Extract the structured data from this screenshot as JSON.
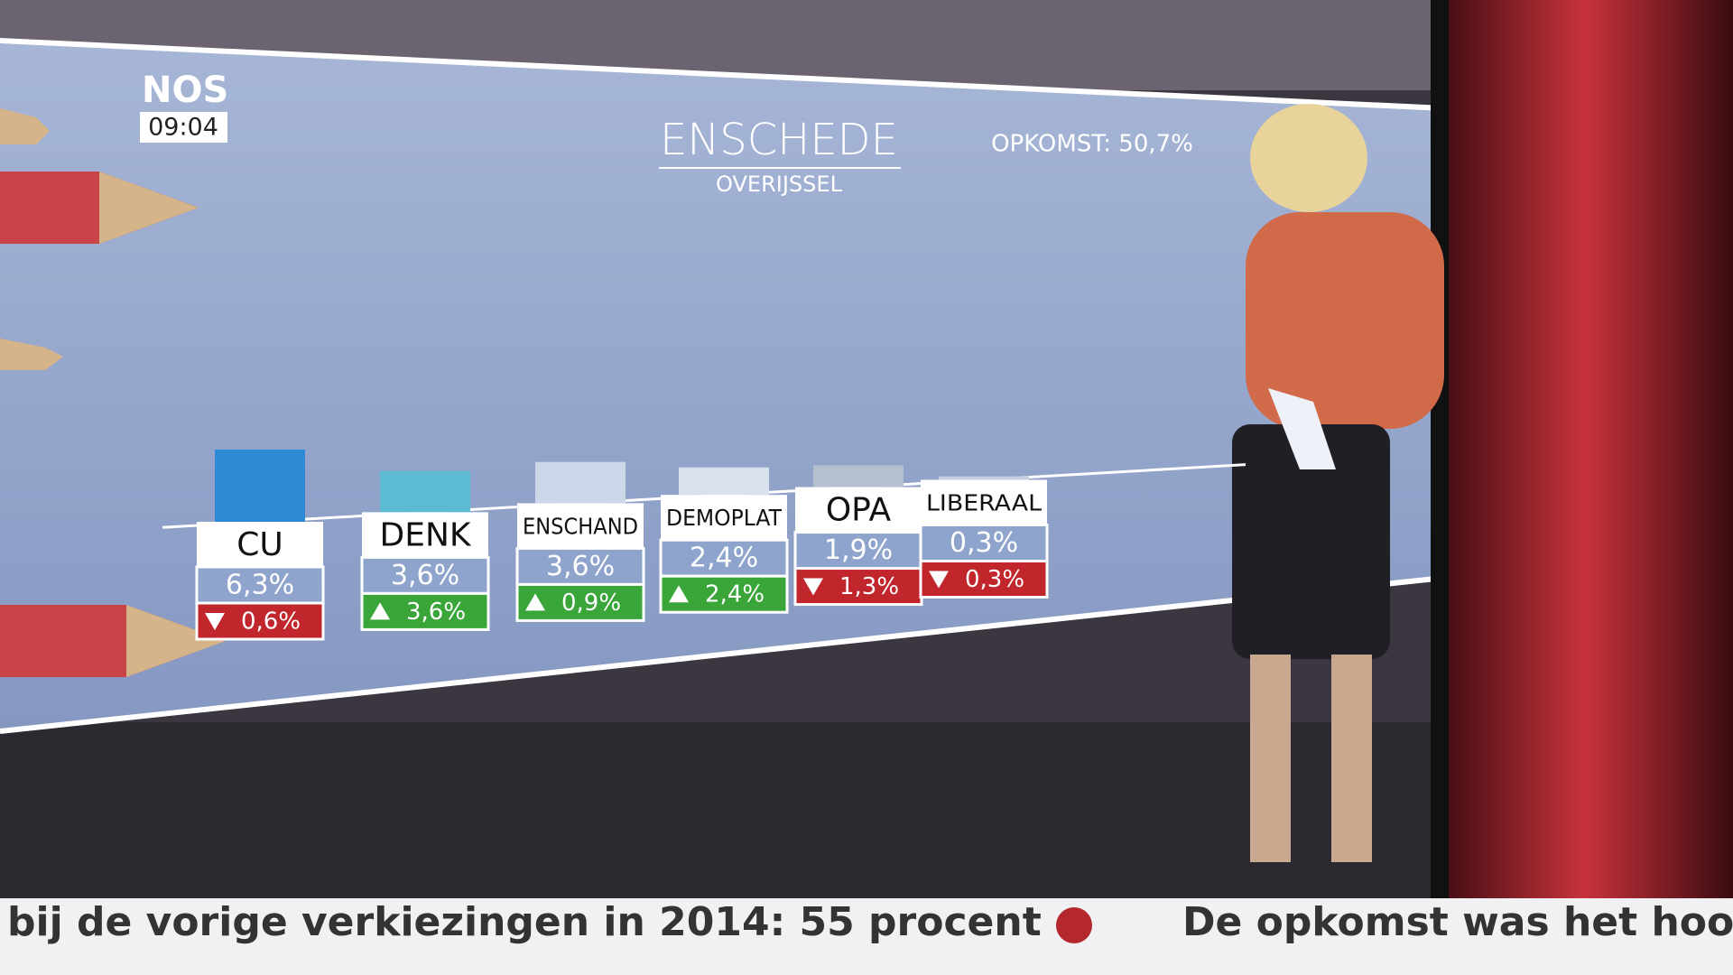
{
  "header": {
    "logo": "NOS",
    "time": "09:04"
  },
  "chart_data": {
    "type": "bar",
    "title": "ENSCHEDE",
    "subtitle": "OVERIJSSEL",
    "annotation": "OPKOMST: 50,7%",
    "categories": [
      "CU",
      "DENK",
      "ENSCHAND",
      "DEMOPLAT",
      "OPA",
      "LIBERAAL"
    ],
    "values": [
      6.3,
      3.6,
      3.6,
      2.4,
      1.9,
      0.3
    ],
    "value_labels": [
      "6,3%",
      "3,6%",
      "3,6%",
      "2,4%",
      "1,9%",
      "0,3%"
    ],
    "colors": [
      "#2f8ad6",
      "#5cbad2",
      "#cdd7ea",
      "#d9e0ee",
      "#b5bfd0",
      "#c5cee0"
    ],
    "changes": [
      -0.6,
      3.6,
      0.9,
      2.4,
      -1.3,
      -0.3
    ],
    "change_labels": [
      "0,6%",
      "3,6%",
      "0,9%",
      "2,4%",
      "1,3%",
      "0,3%"
    ]
  },
  "ticker": {
    "items": [
      "bij de vorige verkiezingen in 2014: 55 procent",
      "De opkomst was het hoog"
    ]
  }
}
